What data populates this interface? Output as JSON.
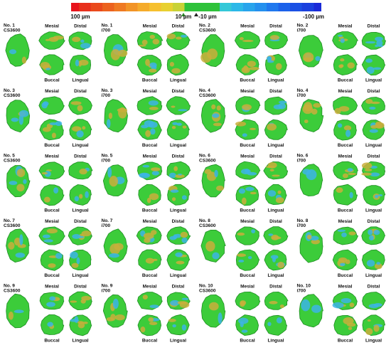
{
  "scale": {
    "labels": [
      "100 µm",
      "10 µm",
      "-10 µm",
      "-100 µm"
    ]
  },
  "panels": [
    {
      "number": "No. 1",
      "device": "CS3600",
      "views": [
        "Mesial",
        "Distal",
        "Buccal",
        "Lingual"
      ]
    },
    {
      "number": "No. 1",
      "device": "i700",
      "views": [
        "Mesial",
        "Distal",
        "Buccal",
        "Lingual"
      ]
    },
    {
      "number": "No. 2",
      "device": "CS3600",
      "views": [
        "Mesial",
        "Distal",
        "Buccal",
        "Lingual"
      ]
    },
    {
      "number": "No. 2",
      "device": "i700",
      "views": [
        "Mesial",
        "Distal",
        "Buccal",
        "Lingual"
      ]
    },
    {
      "number": "No. 3",
      "device": "CS3600",
      "views": [
        "Mesial",
        "Distal",
        "Buccal",
        "Lingual"
      ]
    },
    {
      "number": "No. 3",
      "device": "i700",
      "views": [
        "Mesial",
        "Distal",
        "Buccal",
        "Lingual"
      ]
    },
    {
      "number": "No. 4",
      "device": "CS3600",
      "views": [
        "Mesial",
        "Distal",
        "Buccal",
        "Lingual"
      ]
    },
    {
      "number": "No. 4",
      "device": "i700",
      "views": [
        "Mesial",
        "Distal",
        "Buccal",
        "Lingual"
      ]
    },
    {
      "number": "No. 5",
      "device": "CS3600",
      "views": [
        "Mesial",
        "Distal",
        "Buccal",
        "Lingual"
      ]
    },
    {
      "number": "No. 5",
      "device": "i700",
      "views": [
        "Mesial",
        "Distal",
        "Buccal",
        "Lingual"
      ]
    },
    {
      "number": "No. 6",
      "device": "CS3600",
      "views": [
        "Mesial",
        "Distal",
        "Buccal",
        "Lingual"
      ]
    },
    {
      "number": "No. 6",
      "device": "i700",
      "views": [
        "Mesial",
        "Distal",
        "Buccal",
        "Lingual"
      ]
    },
    {
      "number": "No. 7",
      "device": "CS3600",
      "views": [
        "Mesial",
        "Distal",
        "Buccal",
        "Lingual"
      ]
    },
    {
      "number": "No. 7",
      "device": "i700",
      "views": [
        "Mesial",
        "Distal",
        "Buccal",
        "Lingual"
      ]
    },
    {
      "number": "No. 8",
      "device": "CS3600",
      "views": [
        "Mesial",
        "Distal",
        "Buccal",
        "Lingual"
      ]
    },
    {
      "number": "No. 8",
      "device": "i700",
      "views": [
        "Mesial",
        "Distal",
        "Buccal",
        "Lingual"
      ]
    },
    {
      "number": "No. 9",
      "device": "CS3600",
      "views": [
        "Mesial",
        "Distal",
        "Buccal",
        "Lingual"
      ]
    },
    {
      "number": "No. 9",
      "device": "i700",
      "views": [
        "Mesial",
        "Distal",
        "Buccal",
        "Lingual"
      ]
    },
    {
      "number": "No. 10",
      "device": "CS3600",
      "views": [
        "Mesial",
        "Distal",
        "Buccal",
        "Lingual"
      ]
    },
    {
      "number": "No. 10",
      "device": "i700",
      "views": [
        "Mesial",
        "Distal",
        "Buccal",
        "Lingual"
      ]
    }
  ]
}
